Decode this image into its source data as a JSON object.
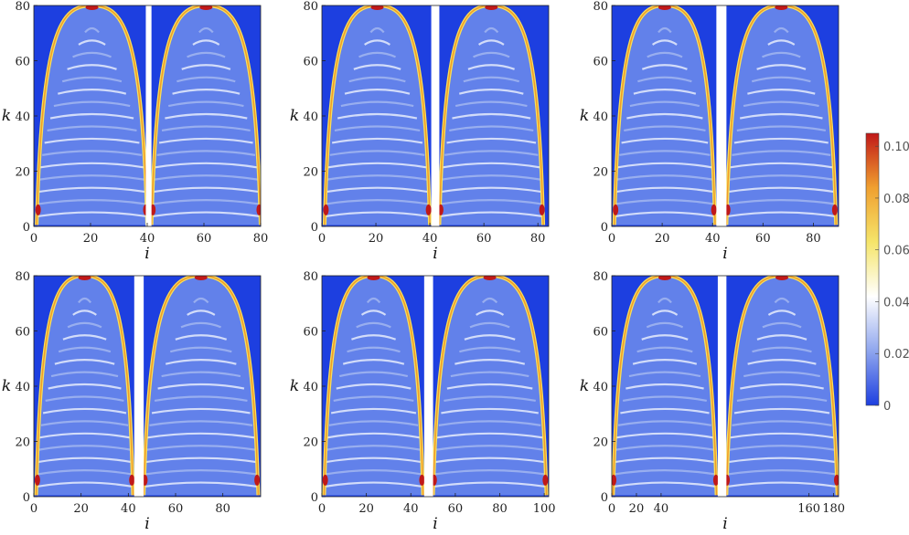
{
  "chart_data": {
    "type": "heatmap",
    "figure": "6 panels of a 2D intensity map with a vertical white gap",
    "colorbar": {
      "range": [
        0,
        0.105
      ],
      "ticks": [
        "0",
        "0.02",
        "0.04",
        "0.06",
        "0.08",
        "0.10"
      ],
      "tick_values": [
        0,
        0.02,
        0.04,
        0.06,
        0.08,
        0.1
      ],
      "colors": [
        "#1d3fe0",
        "#8fa6ee",
        "#ffffff",
        "#f5e56a",
        "#f0a030",
        "#c01818"
      ]
    },
    "panels": [
      {
        "xlabel": "i",
        "ylabel": "k",
        "xlim": [
          0,
          80
        ],
        "ylim": [
          0,
          80
        ],
        "xticks": [
          "0",
          "20",
          "40",
          "60",
          "80"
        ],
        "xtick_values": [
          0,
          20,
          40,
          60,
          80
        ],
        "yticks": [
          "0",
          "20",
          "40",
          "60",
          "80"
        ],
        "ytick_values": [
          0,
          20,
          40,
          60,
          80
        ],
        "gap": [
          39.5,
          41.5
        ],
        "lobes": [
          [
            1,
            40
          ],
          [
            41.5,
            80
          ]
        ],
        "peak_k": 80
      },
      {
        "xlabel": "i",
        "ylabel": "k",
        "xlim": [
          0,
          84
        ],
        "ylim": [
          0,
          80
        ],
        "xticks": [
          "0",
          "20",
          "40",
          "60",
          "80"
        ],
        "xtick_values": [
          0,
          20,
          40,
          60,
          80
        ],
        "yticks": [
          "0",
          "20",
          "40",
          "60",
          "80"
        ],
        "ytick_values": [
          0,
          20,
          40,
          60,
          80
        ],
        "gap": [
          40.5,
          43.5
        ],
        "lobes": [
          [
            1,
            40
          ],
          [
            43.5,
            82
          ]
        ],
        "peak_k": 80
      },
      {
        "xlabel": "i",
        "ylabel": "k",
        "xlim": [
          0,
          90
        ],
        "ylim": [
          0,
          80
        ],
        "xticks": [
          "0",
          "20",
          "40",
          "60",
          "80"
        ],
        "xtick_values": [
          0,
          20,
          40,
          60,
          80
        ],
        "yticks": [
          "0",
          "20",
          "40",
          "60",
          "80"
        ],
        "ytick_values": [
          0,
          20,
          40,
          60,
          80
        ],
        "gap": [
          41.5,
          45.5
        ],
        "lobes": [
          [
            1,
            41
          ],
          [
            45.5,
            89
          ]
        ],
        "peak_k": 80
      },
      {
        "xlabel": "i",
        "ylabel": "k",
        "xlim": [
          0,
          96
        ],
        "ylim": [
          0,
          80
        ],
        "xticks": [
          "0",
          "20",
          "40",
          "60",
          "80"
        ],
        "xtick_values": [
          0,
          20,
          40,
          60,
          80
        ],
        "yticks": [
          "0",
          "20",
          "40",
          "60",
          "80"
        ],
        "ytick_values": [
          0,
          20,
          40,
          60,
          80
        ],
        "gap": [
          42.5,
          46.5
        ],
        "lobes": [
          [
            1,
            42
          ],
          [
            46.5,
            95
          ]
        ],
        "peak_k": 80
      },
      {
        "xlabel": "i",
        "ylabel": "k",
        "xlim": [
          0,
          102
        ],
        "ylim": [
          0,
          80
        ],
        "xticks": [
          "0",
          "20",
          "40",
          "60",
          "80",
          "100"
        ],
        "xtick_values": [
          0,
          20,
          40,
          60,
          80,
          100
        ],
        "yticks": [
          "0",
          "20",
          "40",
          "60",
          "80"
        ],
        "ytick_values": [
          0,
          20,
          40,
          60,
          80
        ],
        "gap": [
          46,
          50
        ],
        "lobes": [
          [
            1,
            45.5
          ],
          [
            50,
            101
          ]
        ],
        "peak_k": 80
      },
      {
        "xlabel": "i",
        "ylabel": "k",
        "xlim": [
          0,
          184
        ],
        "ylim": [
          0,
          80
        ],
        "xticks": [
          "0",
          "20",
          "40",
          "160",
          "180"
        ],
        "xtick_values": [
          0,
          20,
          40,
          160,
          180
        ],
        "yticks": [
          "0",
          "20",
          "40",
          "60",
          "80"
        ],
        "ytick_values": [
          0,
          20,
          40,
          60,
          80
        ],
        "gap": [
          86,
          93
        ],
        "lobes": [
          [
            1,
            85
          ],
          [
            93,
            183
          ]
        ],
        "peak_k": 80
      }
    ]
  }
}
